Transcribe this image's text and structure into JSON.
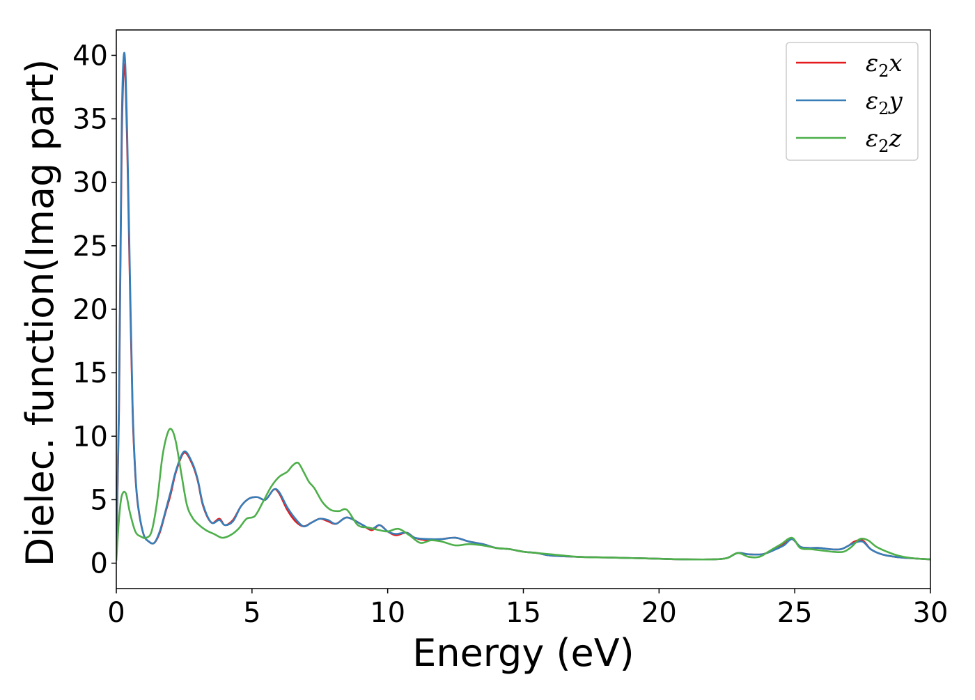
{
  "chart_data": {
    "type": "line",
    "title": "",
    "xlabel": "Energy (eV)",
    "ylabel": "Dielec. function(Imag part)",
    "xlim": [
      0,
      30
    ],
    "ylim": [
      -2,
      42
    ],
    "xticks": [
      0,
      5,
      10,
      15,
      20,
      25,
      30
    ],
    "xtick_labels": [
      "0",
      "5",
      "10",
      "15",
      "20",
      "25",
      "30"
    ],
    "yticks": [
      0,
      5,
      10,
      15,
      20,
      25,
      30,
      35,
      40
    ],
    "ytick_labels": [
      "0",
      "5",
      "10",
      "15",
      "20",
      "25",
      "30",
      "35",
      "40"
    ],
    "grid": false,
    "legend_position": "top-right",
    "series": [
      {
        "name": "ε2x",
        "color": "#e41a1c",
        "x": [
          0.0,
          0.1,
          0.2,
          0.3,
          0.4,
          0.5,
          0.6,
          0.7,
          0.8,
          1.0,
          1.2,
          1.4,
          1.6,
          1.8,
          2.0,
          2.2,
          2.5,
          2.8,
          3.0,
          3.2,
          3.5,
          3.8,
          4.0,
          4.3,
          4.6,
          4.9,
          5.2,
          5.5,
          5.8,
          6.0,
          6.3,
          6.6,
          6.9,
          7.2,
          7.5,
          7.8,
          8.1,
          8.5,
          9.0,
          9.4,
          9.7,
          10.0,
          10.3,
          10.7,
          11.0,
          11.5,
          12.0,
          12.5,
          13.0,
          13.5,
          14.0,
          14.5,
          15.0,
          15.5,
          16.0,
          17.0,
          18.0,
          19.0,
          20.0,
          21.0,
          22.0,
          22.5,
          22.9,
          23.3,
          23.8,
          24.2,
          24.6,
          24.9,
          25.2,
          25.5,
          25.9,
          26.3,
          26.7,
          27.0,
          27.2,
          27.5,
          27.8,
          28.2,
          28.7,
          29.2,
          30.0
        ],
        "y": [
          0.5,
          12,
          33,
          39.3,
          33,
          22,
          12,
          7,
          4.5,
          2.3,
          1.7,
          1.6,
          2.4,
          3.9,
          5.4,
          7.2,
          8.7,
          7.8,
          6.5,
          4.5,
          3.2,
          3.5,
          3.0,
          3.4,
          4.5,
          5.1,
          5.2,
          5.0,
          5.8,
          5.5,
          4.2,
          3.3,
          2.9,
          3.2,
          3.5,
          3.3,
          3.1,
          3.6,
          3.1,
          2.6,
          3.0,
          2.5,
          2.2,
          2.4,
          2.0,
          1.8,
          1.9,
          2.0,
          1.7,
          1.5,
          1.2,
          1.1,
          0.9,
          0.8,
          0.6,
          0.5,
          0.45,
          0.4,
          0.35,
          0.3,
          0.3,
          0.4,
          0.8,
          0.7,
          0.7,
          1.0,
          1.5,
          1.9,
          1.3,
          1.2,
          1.2,
          1.1,
          1.1,
          1.4,
          1.7,
          1.8,
          1.1,
          0.7,
          0.5,
          0.4,
          0.3
        ]
      },
      {
        "name": "ε2y",
        "color": "#377eb8",
        "x": [
          0.0,
          0.1,
          0.2,
          0.3,
          0.4,
          0.5,
          0.6,
          0.7,
          0.8,
          1.0,
          1.2,
          1.4,
          1.6,
          1.8,
          2.0,
          2.2,
          2.5,
          2.8,
          3.0,
          3.2,
          3.5,
          3.8,
          4.0,
          4.3,
          4.6,
          4.9,
          5.2,
          5.5,
          5.8,
          6.0,
          6.3,
          6.6,
          6.9,
          7.2,
          7.5,
          7.8,
          8.1,
          8.5,
          9.0,
          9.4,
          9.7,
          10.0,
          10.3,
          10.7,
          11.0,
          11.5,
          12.0,
          12.5,
          13.0,
          13.5,
          14.0,
          14.5,
          15.0,
          15.5,
          16.0,
          17.0,
          18.0,
          19.0,
          20.0,
          21.0,
          22.0,
          22.5,
          22.9,
          23.3,
          23.8,
          24.2,
          24.6,
          24.9,
          25.2,
          25.5,
          25.9,
          26.3,
          26.7,
          27.0,
          27.2,
          27.5,
          27.8,
          28.2,
          28.7,
          29.2,
          30.0
        ],
        "y": [
          0.5,
          13,
          34.5,
          40.2,
          34,
          23,
          12.5,
          7.2,
          4.6,
          2.3,
          1.7,
          1.6,
          2.5,
          4.0,
          5.6,
          7.3,
          8.8,
          7.9,
          6.6,
          4.6,
          3.2,
          3.4,
          3.0,
          3.3,
          4.5,
          5.1,
          5.2,
          5.0,
          5.8,
          5.6,
          4.4,
          3.5,
          2.9,
          3.2,
          3.5,
          3.4,
          3.1,
          3.6,
          3.1,
          2.7,
          3.0,
          2.5,
          2.3,
          2.4,
          2.0,
          1.9,
          1.9,
          2.0,
          1.7,
          1.5,
          1.2,
          1.1,
          0.9,
          0.8,
          0.6,
          0.5,
          0.45,
          0.4,
          0.35,
          0.3,
          0.3,
          0.4,
          0.8,
          0.7,
          0.7,
          1.0,
          1.4,
          1.9,
          1.3,
          1.2,
          1.2,
          1.1,
          1.1,
          1.4,
          1.6,
          1.7,
          1.1,
          0.7,
          0.5,
          0.4,
          0.3
        ]
      },
      {
        "name": "ε2z",
        "color": "#4daf4a",
        "x": [
          0.0,
          0.1,
          0.2,
          0.35,
          0.5,
          0.7,
          0.9,
          1.1,
          1.3,
          1.5,
          1.7,
          1.9,
          2.05,
          2.2,
          2.4,
          2.6,
          2.8,
          3.0,
          3.3,
          3.6,
          3.9,
          4.2,
          4.5,
          4.8,
          5.1,
          5.4,
          5.7,
          6.0,
          6.3,
          6.5,
          6.7,
          6.9,
          7.1,
          7.3,
          7.6,
          7.9,
          8.2,
          8.5,
          8.9,
          9.3,
          9.7,
          10.0,
          10.4,
          10.8,
          11.2,
          11.6,
          12.0,
          12.5,
          13.0,
          13.5,
          14.0,
          14.5,
          15.0,
          15.5,
          16.0,
          17.0,
          18.0,
          19.0,
          20.0,
          21.0,
          22.0,
          22.5,
          22.9,
          23.3,
          23.7,
          24.1,
          24.5,
          24.9,
          25.2,
          25.6,
          26.0,
          26.4,
          26.8,
          27.1,
          27.4,
          27.7,
          28.0,
          28.4,
          28.8,
          29.3,
          30.0
        ],
        "y": [
          0.2,
          3.5,
          5.3,
          5.5,
          4.0,
          2.5,
          2.1,
          2.0,
          2.5,
          4.8,
          8.4,
          10.3,
          10.5,
          9.5,
          7.0,
          4.6,
          3.6,
          3.1,
          2.6,
          2.3,
          2.0,
          2.2,
          2.7,
          3.5,
          3.7,
          4.8,
          6.0,
          6.8,
          7.2,
          7.7,
          7.9,
          7.2,
          6.4,
          5.9,
          4.8,
          4.2,
          4.1,
          4.2,
          3.0,
          2.8,
          2.6,
          2.5,
          2.7,
          2.2,
          1.6,
          1.8,
          1.7,
          1.4,
          1.5,
          1.4,
          1.2,
          1.1,
          0.9,
          0.8,
          0.7,
          0.5,
          0.45,
          0.4,
          0.35,
          0.3,
          0.3,
          0.4,
          0.8,
          0.5,
          0.5,
          1.0,
          1.5,
          2.0,
          1.2,
          1.1,
          1.0,
          0.9,
          0.9,
          1.3,
          1.9,
          1.8,
          1.3,
          0.9,
          0.6,
          0.4,
          0.3
        ]
      }
    ]
  }
}
